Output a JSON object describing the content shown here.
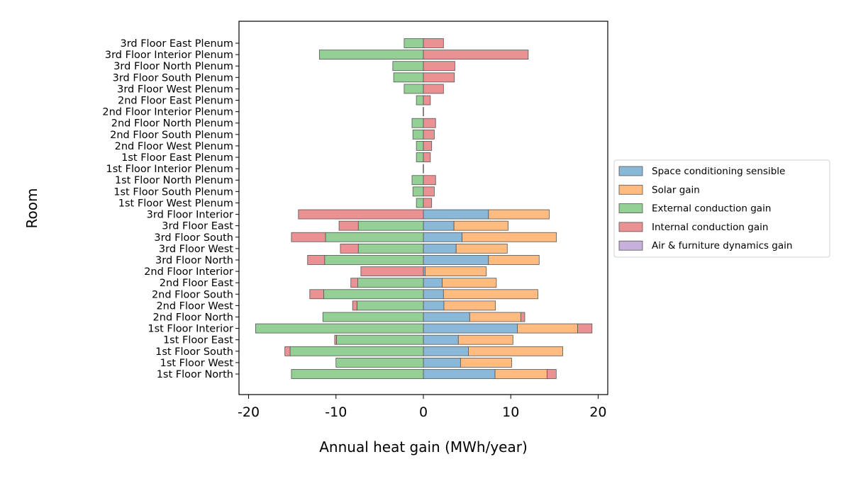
{
  "chart_data": {
    "type": "bar",
    "orientation": "horizontal",
    "stacked": true,
    "title": "",
    "xlabel": "Annual heat gain (MWh/year)",
    "ylabel": "Room",
    "xlim": [
      -21.1,
      21.1
    ],
    "xticks": [
      -20,
      -10,
      0,
      10,
      20
    ],
    "xtick_labels": [
      "-20",
      "-10",
      "0",
      "10",
      "20"
    ],
    "grid": false,
    "legend_placement": "center-right outside",
    "categories": [
      "3rd Floor East Plenum",
      "3rd Floor Interior Plenum",
      "3rd Floor North Plenum",
      "3rd Floor South Plenum",
      "3rd Floor West Plenum",
      "2nd Floor East Plenum",
      "2nd Floor Interior Plenum",
      "2nd Floor North Plenum",
      "2nd Floor South Plenum",
      "2nd Floor West Plenum",
      "1st Floor East Plenum",
      "1st Floor Interior Plenum",
      "1st Floor North Plenum",
      "1st Floor South Plenum",
      "1st Floor West Plenum",
      "3rd Floor Interior",
      "3rd Floor East",
      "3rd Floor South",
      "3rd Floor West",
      "3rd Floor North",
      "2nd Floor Interior",
      "2nd Floor East",
      "2nd Floor South",
      "2nd Floor West",
      "2nd Floor North",
      "1st Floor Interior",
      "1st Floor East",
      "1st Floor South",
      "1st Floor West",
      "1st Floor North"
    ],
    "series": [
      {
        "name": "Space conditioning sensible",
        "color": "#8ab8d9",
        "values": [
          0,
          0,
          0,
          0,
          0,
          0,
          0,
          0,
          0,
          0,
          0,
          0,
          0,
          0,
          0,
          7.45,
          3.5,
          4.43,
          3.75,
          7.45,
          0.2,
          2.15,
          2.3,
          2.35,
          5.3,
          10.75,
          4.0,
          5.15,
          4.25,
          8.2
        ]
      },
      {
        "name": "Solar gain",
        "color": "#ffbb80",
        "values": [
          0,
          0,
          0,
          0,
          0,
          0,
          0,
          0,
          0,
          0,
          0,
          0,
          0,
          0,
          0,
          6.95,
          6.2,
          10.8,
          5.85,
          5.8,
          7.0,
          6.2,
          10.8,
          5.9,
          5.85,
          6.9,
          6.25,
          10.8,
          5.85,
          5.95
        ]
      },
      {
        "name": "External conduction gain",
        "color": "#94d095",
        "values": [
          -2.2,
          -11.9,
          -3.5,
          -3.4,
          -2.2,
          -0.8,
          0,
          -1.3,
          -1.2,
          -0.8,
          -0.8,
          0,
          -1.3,
          -1.2,
          -0.8,
          0,
          -7.45,
          -11.2,
          -7.45,
          -11.3,
          0,
          -7.5,
          -11.4,
          -7.6,
          -11.5,
          -19.2,
          -9.95,
          -15.25,
          -10.0,
          -15.1
        ]
      },
      {
        "name": "Internal conduction gain",
        "color": "#ea9293",
        "values": [
          2.3,
          12.0,
          3.6,
          3.55,
          2.3,
          0.8,
          0,
          1.4,
          1.25,
          0.95,
          0.8,
          0,
          1.4,
          1.25,
          0.95,
          -14.3,
          -2.2,
          -3.9,
          -2.05,
          -1.95,
          -7.15,
          -0.8,
          -1.6,
          -0.5,
          0.45,
          1.65,
          -0.2,
          -0.6,
          0,
          1.05
        ]
      },
      {
        "name": "Air & furniture dynamics gain",
        "color": "#c6b0dc",
        "values": [
          0,
          0,
          0,
          0,
          0,
          0,
          0,
          0,
          0,
          0,
          0,
          0,
          0,
          0,
          0,
          0,
          0,
          0,
          0,
          0,
          0,
          0,
          0,
          0,
          0,
          0,
          0,
          0,
          0,
          0
        ]
      }
    ]
  }
}
